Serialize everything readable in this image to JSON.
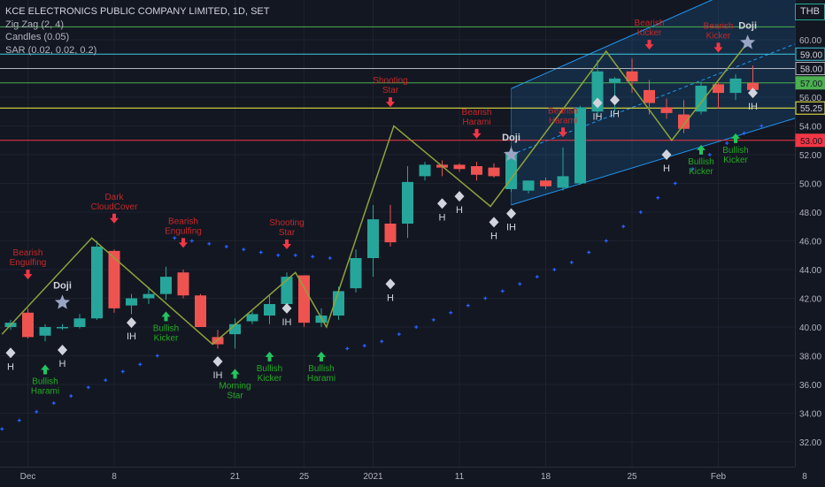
{
  "legend": {
    "title": "KCE ELECTRONICS PUBLIC COMPANY LIMITED, 1D, SET",
    "indicator1": "Zig Zag (2, 4)",
    "indicator2": "Candles (0.05)",
    "indicator3": "SAR (0.02, 0.02, 0.2)"
  },
  "currency": "THB",
  "colors": {
    "bull": "#26a69a",
    "bear": "#ef5350",
    "zigzag": "#8fa33a",
    "sar": "#2962ff",
    "bull_label": "#22ab22",
    "bear_label": "#c62828",
    "channel": "#2196f3"
  },
  "chart_data": {
    "type": "candlestick",
    "ylim": [
      31,
      61.5
    ],
    "y_ticks": [
      "32.00",
      "34.00",
      "36.00",
      "38.00",
      "40.00",
      "42.00",
      "44.00",
      "46.00",
      "48.00",
      "50.00",
      "52.00",
      "54.00",
      "56.00",
      "58.00",
      "60.00"
    ],
    "x_ticks": [
      {
        "label": "Dec",
        "bar": 1
      },
      {
        "label": "8",
        "bar": 6
      },
      {
        "label": "21",
        "bar": 13
      },
      {
        "label": "25",
        "bar": 17
      },
      {
        "label": "2021",
        "bar": 21
      },
      {
        "label": "11",
        "bar": 26
      },
      {
        "label": "18",
        "bar": 31
      },
      {
        "label": "25",
        "bar": 36
      },
      {
        "label": "Feb",
        "bar": 41
      },
      {
        "label": "8",
        "bar": 46
      }
    ],
    "candles": [
      {
        "bar": 0,
        "o": 40.0,
        "h": 40.5,
        "l": 39.8,
        "c": 40.3
      },
      {
        "bar": 1,
        "o": 41.0,
        "h": 41.3,
        "l": 39.2,
        "c": 39.3
      },
      {
        "bar": 2,
        "o": 39.4,
        "h": 40.2,
        "l": 39.0,
        "c": 40.0
      },
      {
        "bar": 3,
        "o": 40.0,
        "h": 40.2,
        "l": 39.8,
        "c": 40.0
      },
      {
        "bar": 4,
        "o": 40.0,
        "h": 40.9,
        "l": 39.9,
        "c": 40.6
      },
      {
        "bar": 5,
        "o": 40.6,
        "h": 46.0,
        "l": 40.5,
        "c": 45.6
      },
      {
        "bar": 6,
        "o": 45.3,
        "h": 45.4,
        "l": 41.0,
        "c": 41.3
      },
      {
        "bar": 7,
        "o": 41.5,
        "h": 42.3,
        "l": 40.9,
        "c": 42.0
      },
      {
        "bar": 8,
        "o": 42.0,
        "h": 42.8,
        "l": 41.6,
        "c": 42.3
      },
      {
        "bar": 9,
        "o": 42.3,
        "h": 44.2,
        "l": 41.9,
        "c": 43.5
      },
      {
        "bar": 10,
        "o": 43.8,
        "h": 44.0,
        "l": 42.0,
        "c": 42.2
      },
      {
        "bar": 11,
        "o": 42.2,
        "h": 42.3,
        "l": 40.0,
        "c": 40.0
      },
      {
        "bar": 12,
        "o": 39.3,
        "h": 39.8,
        "l": 38.5,
        "c": 38.8
      },
      {
        "bar": 13,
        "o": 39.5,
        "h": 40.6,
        "l": 38.5,
        "c": 40.2
      },
      {
        "bar": 14,
        "o": 40.4,
        "h": 41.1,
        "l": 40.2,
        "c": 40.9
      },
      {
        "bar": 15,
        "o": 40.8,
        "h": 42.2,
        "l": 40.2,
        "c": 41.6
      },
      {
        "bar": 16,
        "o": 41.6,
        "h": 43.8,
        "l": 41.2,
        "c": 43.5
      },
      {
        "bar": 17,
        "o": 43.6,
        "h": 43.6,
        "l": 40.0,
        "c": 40.3
      },
      {
        "bar": 18,
        "o": 40.3,
        "h": 41.3,
        "l": 40.0,
        "c": 40.8
      },
      {
        "bar": 19,
        "o": 40.8,
        "h": 42.8,
        "l": 40.5,
        "c": 42.5
      },
      {
        "bar": 20,
        "o": 42.7,
        "h": 45.4,
        "l": 42.4,
        "c": 44.8
      },
      {
        "bar": 21,
        "o": 44.8,
        "h": 48.5,
        "l": 43.5,
        "c": 47.5
      },
      {
        "bar": 22,
        "o": 47.2,
        "h": 48.5,
        "l": 45.6,
        "c": 45.9
      },
      {
        "bar": 23,
        "o": 47.2,
        "h": 51.2,
        "l": 46.2,
        "c": 50.1
      },
      {
        "bar": 24,
        "o": 50.5,
        "h": 51.5,
        "l": 50.2,
        "c": 51.3
      },
      {
        "bar": 25,
        "o": 51.3,
        "h": 51.6,
        "l": 50.5,
        "c": 51.1
      },
      {
        "bar": 26,
        "o": 51.3,
        "h": 51.4,
        "l": 50.8,
        "c": 51.0
      },
      {
        "bar": 27,
        "o": 51.2,
        "h": 51.5,
        "l": 50.2,
        "c": 50.6
      },
      {
        "bar": 28,
        "o": 51.1,
        "h": 51.4,
        "l": 50.4,
        "c": 50.5
      },
      {
        "bar": 29,
        "o": 49.6,
        "h": 52.6,
        "l": 49.4,
        "c": 52.2
      },
      {
        "bar": 30,
        "o": 49.5,
        "h": 50.1,
        "l": 49.3,
        "c": 50.2
      },
      {
        "bar": 31,
        "o": 50.2,
        "h": 50.4,
        "l": 49.6,
        "c": 49.8
      },
      {
        "bar": 32,
        "o": 49.7,
        "h": 52.5,
        "l": 49.5,
        "c": 50.5
      },
      {
        "bar": 33,
        "o": 50.0,
        "h": 55.4,
        "l": 49.9,
        "c": 55.3
      },
      {
        "bar": 34,
        "o": 55.0,
        "h": 58.6,
        "l": 54.7,
        "c": 57.8
      },
      {
        "bar": 35,
        "o": 57.0,
        "h": 57.4,
        "l": 55.0,
        "c": 57.3
      },
      {
        "bar": 36,
        "o": 57.8,
        "h": 58.7,
        "l": 56.3,
        "c": 57.1
      },
      {
        "bar": 37,
        "o": 56.5,
        "h": 57.2,
        "l": 54.8,
        "c": 55.6
      },
      {
        "bar": 38,
        "o": 55.3,
        "h": 55.9,
        "l": 54.5,
        "c": 54.9
      },
      {
        "bar": 39,
        "o": 54.8,
        "h": 55.8,
        "l": 53.5,
        "c": 53.8
      },
      {
        "bar": 40,
        "o": 55.0,
        "h": 57.1,
        "l": 54.8,
        "c": 56.8
      },
      {
        "bar": 41,
        "o": 56.9,
        "h": 57.0,
        "l": 55.2,
        "c": 56.3
      },
      {
        "bar": 42,
        "o": 56.3,
        "h": 57.6,
        "l": 55.8,
        "c": 57.3
      },
      {
        "bar": 43,
        "o": 57.0,
        "h": 58.2,
        "l": 56.0,
        "c": 56.5
      }
    ],
    "zigzag": [
      {
        "bar": -0.5,
        "y": 39.5
      },
      {
        "bar": 4.7,
        "y": 46.2
      },
      {
        "bar": 11.7,
        "y": 38.8
      },
      {
        "bar": 16.5,
        "y": 43.8
      },
      {
        "bar": 18.3,
        "y": 40.0
      },
      {
        "bar": 22.2,
        "y": 54.0
      },
      {
        "bar": 27.8,
        "y": 48.4
      },
      {
        "bar": 34.5,
        "y": 59.2
      },
      {
        "bar": 38.3,
        "y": 53.0
      },
      {
        "bar": 42.5,
        "y": 59.5
      }
    ],
    "sar": [
      {
        "bar": -0.5,
        "y": 32.9
      },
      {
        "bar": 0.5,
        "y": 33.5
      },
      {
        "bar": 1.5,
        "y": 34.1
      },
      {
        "bar": 2.5,
        "y": 34.7
      },
      {
        "bar": 3.5,
        "y": 35.2
      },
      {
        "bar": 4.5,
        "y": 35.8
      },
      {
        "bar": 5.5,
        "y": 36.3
      },
      {
        "bar": 6.5,
        "y": 36.9
      },
      {
        "bar": 7.5,
        "y": 37.4
      },
      {
        "bar": 8.5,
        "y": 38.0
      },
      {
        "bar": 9.5,
        "y": 46.2
      },
      {
        "bar": 10.5,
        "y": 46.0
      },
      {
        "bar": 11.5,
        "y": 45.8
      },
      {
        "bar": 12.5,
        "y": 45.6
      },
      {
        "bar": 13.5,
        "y": 45.4
      },
      {
        "bar": 14.5,
        "y": 45.2
      },
      {
        "bar": 15.5,
        "y": 45.0
      },
      {
        "bar": 16.5,
        "y": 45.0
      },
      {
        "bar": 17.5,
        "y": 44.9
      },
      {
        "bar": 18.5,
        "y": 44.8
      },
      {
        "bar": 19.5,
        "y": 38.5
      },
      {
        "bar": 20.5,
        "y": 38.7
      },
      {
        "bar": 21.5,
        "y": 39.0
      },
      {
        "bar": 22.5,
        "y": 39.5
      },
      {
        "bar": 23.5,
        "y": 40.0
      },
      {
        "bar": 24.5,
        "y": 40.5
      },
      {
        "bar": 25.5,
        "y": 41.0
      },
      {
        "bar": 26.5,
        "y": 41.5
      },
      {
        "bar": 27.5,
        "y": 42.0
      },
      {
        "bar": 28.5,
        "y": 42.5
      },
      {
        "bar": 29.5,
        "y": 43.0
      },
      {
        "bar": 30.5,
        "y": 43.5
      },
      {
        "bar": 31.5,
        "y": 44.0
      },
      {
        "bar": 32.5,
        "y": 44.5
      },
      {
        "bar": 33.5,
        "y": 45.2
      },
      {
        "bar": 34.5,
        "y": 46.0
      },
      {
        "bar": 35.5,
        "y": 47.0
      },
      {
        "bar": 36.5,
        "y": 48.0
      },
      {
        "bar": 37.5,
        "y": 49.0
      },
      {
        "bar": 38.5,
        "y": 50.0
      },
      {
        "bar": 39.5,
        "y": 51.0
      },
      {
        "bar": 40.5,
        "y": 52.0
      },
      {
        "bar": 41.5,
        "y": 52.8
      },
      {
        "bar": 42.5,
        "y": 53.5
      },
      {
        "bar": 43.5,
        "y": 54.0
      }
    ],
    "hlines": [
      {
        "y": 60.9,
        "color": "#4caf50",
        "label": "",
        "label_bg": ""
      },
      {
        "y": 59.0,
        "color": "#3ec7e0",
        "label": "59.00",
        "label_bg": "#131722"
      },
      {
        "y": 58.0,
        "color": "#b2b5be",
        "label": "58.00",
        "label_bg": "#131722"
      },
      {
        "y": 57.0,
        "color": "#4caf50",
        "label": "57.00",
        "label_bg": "#4caf50"
      },
      {
        "y": 55.25,
        "color": "#f5f542",
        "label": "55.25",
        "label_bg": "#131722"
      },
      {
        "y": 53.0,
        "color": "#f23645",
        "label": "53.00",
        "label_bg": "#f23645"
      }
    ],
    "channel": {
      "x0": 29,
      "x1": 46.7,
      "upper": [
        56.6,
        66.0
      ],
      "mid": [
        52.0,
        60.3
      ],
      "lower": [
        48.5,
        55.0
      ]
    },
    "patterns": [
      {
        "bar": 1,
        "text": [
          "Bearish",
          "Engulfing"
        ],
        "dir": "bear",
        "y": 43.5
      },
      {
        "bar": 6,
        "text": [
          "Dark",
          "CloudCover"
        ],
        "dir": "bear",
        "y": 47.4
      },
      {
        "bar": 10,
        "text": [
          "Bearish",
          "Engulfing"
        ],
        "dir": "bear",
        "y": 45.7
      },
      {
        "bar": 16,
        "text": [
          "Shooting",
          "Star"
        ],
        "dir": "bear",
        "y": 45.6
      },
      {
        "bar": 22,
        "text": [
          "Shooting",
          "Star"
        ],
        "dir": "bear",
        "y": 55.5
      },
      {
        "bar": 27,
        "text": [
          "Bearish",
          "Harami"
        ],
        "dir": "bear",
        "y": 53.3
      },
      {
        "bar": 32,
        "text": [
          "Bearish",
          "Harami"
        ],
        "dir": "bear",
        "y": 53.4
      },
      {
        "bar": 37,
        "text": [
          "Bearish",
          "Kicker"
        ],
        "dir": "bear",
        "y": 59.5
      },
      {
        "bar": 41,
        "text": [
          "Bearish",
          "Kicker"
        ],
        "dir": "bear",
        "y": 59.3
      },
      {
        "bar": 2,
        "text": [
          "Bullish",
          "Harami"
        ],
        "dir": "bull",
        "y": 37.2
      },
      {
        "bar": 9,
        "text": [
          "Bullish",
          "Kicker"
        ],
        "dir": "bull",
        "y": 40.9
      },
      {
        "bar": 13,
        "text": [
          "Morning",
          "Star"
        ],
        "dir": "bull",
        "y": 36.9
      },
      {
        "bar": 15,
        "text": [
          "Bullish",
          "Kicker"
        ],
        "dir": "bull",
        "y": 38.1
      },
      {
        "bar": 18,
        "text": [
          "Bullish",
          "Harami"
        ],
        "dir": "bull",
        "y": 38.1
      },
      {
        "bar": 40,
        "text": [
          "Bullish",
          "Kicker"
        ],
        "dir": "bull",
        "y": 52.5
      },
      {
        "bar": 42,
        "text": [
          "Bullish",
          "Kicker"
        ],
        "dir": "bull",
        "y": 53.3
      }
    ],
    "doji": [
      {
        "bar": 3,
        "y": 41.7,
        "label": "Doji"
      },
      {
        "bar": 29,
        "y": 52.0,
        "label": "Doji"
      },
      {
        "bar": 42.7,
        "y": 59.8,
        "label": "Doji"
      }
    ],
    "diamonds": [
      {
        "bar": 0,
        "y": 38.2,
        "label": "H"
      },
      {
        "bar": 3,
        "y": 38.4,
        "label": "H"
      },
      {
        "bar": 7,
        "y": 40.3,
        "label": "IH"
      },
      {
        "bar": 12,
        "y": 37.6,
        "label": "IH"
      },
      {
        "bar": 16,
        "y": 41.3,
        "label": "IH"
      },
      {
        "bar": 22,
        "y": 43.0,
        "label": "H"
      },
      {
        "bar": 25,
        "y": 48.6,
        "label": "H"
      },
      {
        "bar": 26,
        "y": 49.1,
        "label": "H"
      },
      {
        "bar": 28,
        "y": 47.3,
        "label": "H"
      },
      {
        "bar": 29,
        "y": 47.9,
        "label": "IH"
      },
      {
        "bar": 34,
        "y": 55.6,
        "label": "IH"
      },
      {
        "bar": 35,
        "y": 55.8,
        "label": "IH"
      },
      {
        "bar": 38,
        "y": 52.0,
        "label": "H"
      },
      {
        "bar": 43,
        "y": 56.3,
        "label": "IH"
      }
    ]
  }
}
